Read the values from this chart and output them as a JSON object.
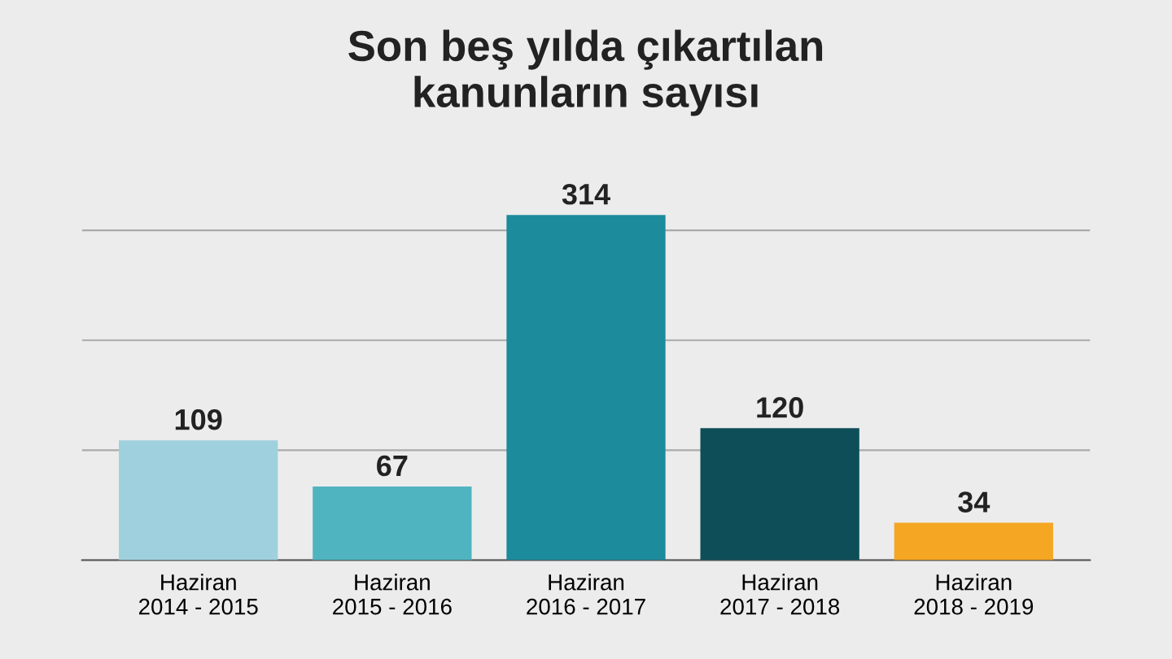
{
  "chart_data": {
    "type": "bar",
    "title": "Son beş yılda çıkartılan\nkanunların sayısı",
    "categories": [
      "Haziran\n2014 - 2015",
      "Haziran\n2015 - 2016",
      "Haziran\n2016 - 2017",
      "Haziran\n2017 - 2018",
      "Haziran\n2018 - 2019"
    ],
    "values": [
      109,
      67,
      314,
      120,
      34
    ],
    "colors": [
      "#9fd0dd",
      "#4fb4c0",
      "#1c8b9c",
      "#0e4e58",
      "#f5a623"
    ],
    "yticks": [
      {
        "value": 0,
        "label": null
      },
      {
        "value": 100,
        "label": null
      },
      {
        "value": 200,
        "label": null
      },
      {
        "value": 300,
        "label": null
      }
    ],
    "grid": "y",
    "tick_labels": "x",
    "data_labels": true
  }
}
